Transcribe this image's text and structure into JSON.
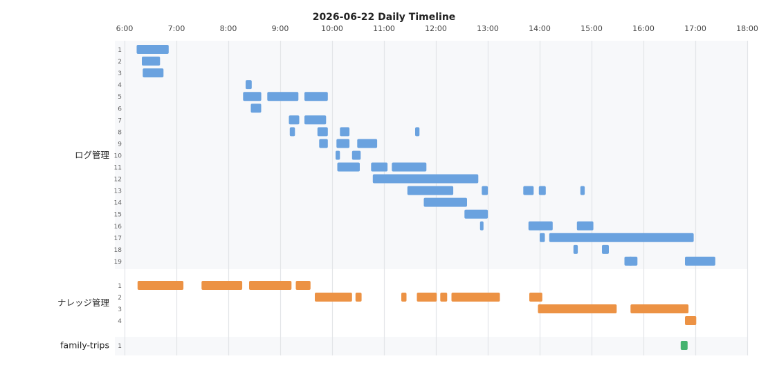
{
  "chart_data": {
    "type": "timeline",
    "title": "2026-06-22 Daily Timeline",
    "x_range": [
      "6:00",
      "18:00"
    ],
    "x_ticks": [
      "6:00",
      "7:00",
      "8:00",
      "9:00",
      "10:00",
      "11:00",
      "12:00",
      "13:00",
      "14:00",
      "15:00",
      "16:00",
      "17:00",
      "18:00"
    ],
    "grid": true,
    "colors": {
      "ログ管理": "#6aa2df",
      "ナレッジ管理": "#ec9244",
      "family-trips": "#45b36f"
    },
    "groups": [
      {
        "name": "ログ管理",
        "color": "#6aa2df",
        "rows": [
          {
            "label": "1",
            "bars": [
              [
                "6:14",
                "6:51"
              ]
            ]
          },
          {
            "label": "2",
            "bars": [
              [
                "6:20",
                "6:41"
              ]
            ]
          },
          {
            "label": "3",
            "bars": [
              [
                "6:21",
                "6:45"
              ]
            ]
          },
          {
            "label": "4",
            "bars": [
              [
                "8:20",
                "8:27"
              ]
            ]
          },
          {
            "label": "5",
            "bars": [
              [
                "8:17",
                "8:38"
              ],
              [
                "8:45",
                "9:21"
              ],
              [
                "9:28",
                "9:55"
              ]
            ]
          },
          {
            "label": "6",
            "bars": [
              [
                "8:26",
                "8:38"
              ]
            ]
          },
          {
            "label": "7",
            "bars": [
              [
                "9:10",
                "9:22"
              ],
              [
                "9:28",
                "9:53"
              ]
            ]
          },
          {
            "label": "8",
            "bars": [
              [
                "9:11",
                "9:17"
              ],
              [
                "9:43",
                "9:55"
              ],
              [
                "10:09",
                "10:20"
              ],
              [
                "11:36",
                "11:41"
              ]
            ]
          },
          {
            "label": "9",
            "bars": [
              [
                "9:45",
                "9:55"
              ],
              [
                "10:05",
                "10:20"
              ],
              [
                "10:29",
                "10:52"
              ]
            ]
          },
          {
            "label": "10",
            "bars": [
              [
                "10:04",
                "10:09"
              ],
              [
                "10:23",
                "10:33"
              ]
            ]
          },
          {
            "label": "11",
            "bars": [
              [
                "10:06",
                "10:32"
              ],
              [
                "10:45",
                "11:04"
              ],
              [
                "11:09",
                "11:49"
              ]
            ]
          },
          {
            "label": "12",
            "bars": [
              [
                "10:47",
                "12:49"
              ]
            ]
          },
          {
            "label": "13",
            "bars": [
              [
                "11:27",
                "12:20"
              ],
              [
                "12:53",
                "13:00"
              ],
              [
                "13:41",
                "13:53"
              ],
              [
                "13:59",
                "14:07"
              ],
              [
                "14:47",
                "14:52"
              ]
            ]
          },
          {
            "label": "14",
            "bars": [
              [
                "11:46",
                "12:36"
              ]
            ]
          },
          {
            "label": "15",
            "bars": [
              [
                "12:33",
                "13:00"
              ]
            ]
          },
          {
            "label": "16",
            "bars": [
              [
                "12:51",
                "12:55"
              ],
              [
                "13:47",
                "14:15"
              ],
              [
                "14:43",
                "15:02"
              ]
            ]
          },
          {
            "label": "17",
            "bars": [
              [
                "14:00",
                "14:06"
              ],
              [
                "14:11",
                "16:58"
              ]
            ]
          },
          {
            "label": "18",
            "bars": [
              [
                "14:39",
                "14:44"
              ],
              [
                "15:12",
                "15:20"
              ]
            ]
          },
          {
            "label": "19",
            "bars": [
              [
                "15:38",
                "15:53"
              ],
              [
                "15:43",
                "15:47"
              ],
              [
                "16:48",
                "17:23"
              ]
            ]
          }
        ]
      },
      {
        "name": "ナレッジ管理",
        "color": "#ec9244",
        "rows": [
          {
            "label": "1",
            "bars": [
              [
                "6:15",
                "7:08"
              ],
              [
                "7:29",
                "8:16"
              ],
              [
                "8:24",
                "9:13"
              ],
              [
                "9:18",
                "9:35"
              ]
            ]
          },
          {
            "label": "2",
            "bars": [
              [
                "9:40",
                "10:23"
              ],
              [
                "10:27",
                "10:34"
              ],
              [
                "11:20",
                "11:26"
              ],
              [
                "11:38",
                "12:01"
              ],
              [
                "12:05",
                "12:13"
              ],
              [
                "12:18",
                "13:14"
              ],
              [
                "13:48",
                "14:03"
              ]
            ]
          },
          {
            "label": "3",
            "bars": [
              [
                "13:58",
                "15:29"
              ],
              [
                "15:45",
                "16:52"
              ]
            ]
          },
          {
            "label": "4",
            "bars": [
              [
                "16:48",
                "17:01"
              ]
            ]
          }
        ]
      },
      {
        "name": "family-trips",
        "color": "#45b36f",
        "rows": [
          {
            "label": "1",
            "bars": [
              [
                "16:43",
                "16:51"
              ]
            ]
          }
        ]
      }
    ]
  }
}
